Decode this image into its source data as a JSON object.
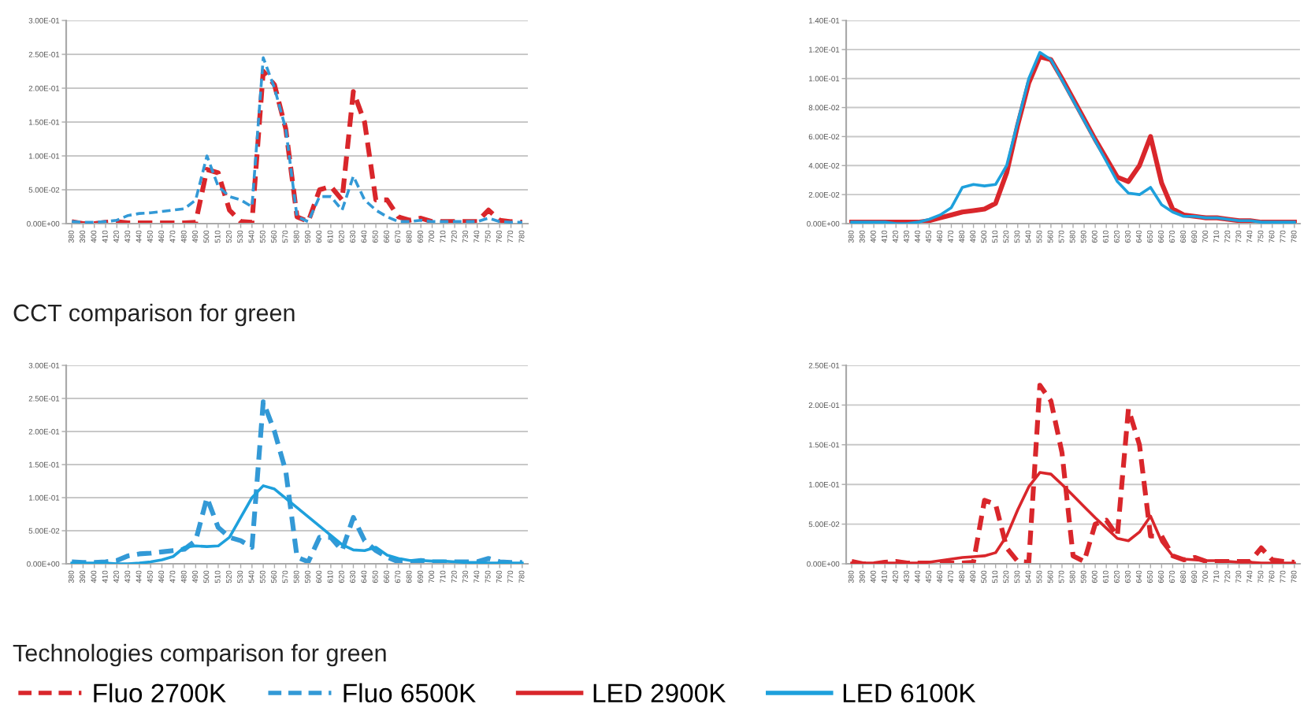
{
  "chart_data": [
    {
      "type": "line",
      "categories": [
        "380",
        "390",
        "400",
        "410",
        "420",
        "430",
        "440",
        "450",
        "460",
        "470",
        "480",
        "490",
        "500",
        "510",
        "520",
        "530",
        "540",
        "550",
        "560",
        "570",
        "580",
        "590",
        "600",
        "610",
        "620",
        "630",
        "640",
        "650",
        "660",
        "670",
        "680",
        "690",
        "700",
        "710",
        "720",
        "730",
        "740",
        "750",
        "760",
        "770",
        "780"
      ],
      "ylim": [
        0,
        0.3
      ],
      "yticks": [
        {
          "value": 0,
          "label": "0.00E+00"
        },
        {
          "value": 0.05,
          "label": "5.00E-02"
        },
        {
          "value": 0.1,
          "label": "1.00E-01"
        },
        {
          "value": 0.15,
          "label": "1.50E-01"
        },
        {
          "value": 0.2,
          "label": "2.00E-01"
        },
        {
          "value": 0.25,
          "label": "2.50E-01"
        },
        {
          "value": 0.3,
          "label": "3.00E-01"
        }
      ],
      "grid": "y",
      "line_style": "dashed",
      "legend": "bottom",
      "annotations": [
        "CCT comparison for green"
      ],
      "series": [
        {
          "name": "Fluo 2700K",
          "color": "#d9262b",
          "values": [
            0.003,
            0,
            0,
            0.002,
            0.003,
            0.001,
            0.001,
            0.001,
            0.001,
            0.001,
            0.001,
            0.002,
            0.08,
            0.075,
            0.02,
            0.003,
            0.002,
            0.225,
            0.205,
            0.14,
            0.01,
            0.003,
            0.05,
            0.055,
            0.035,
            0.195,
            0.15,
            0.035,
            0.035,
            0.01,
            0.005,
            0.008,
            0.003,
            0.003,
            0.003,
            0.003,
            0.003,
            0.02,
            0.005,
            0.003,
            0.002
          ]
        },
        {
          "name": "Fluo 6500K",
          "color": "#3399d6",
          "values": [
            0.003,
            0.002,
            0.002,
            0.003,
            0.005,
            0.012,
            0.015,
            0.016,
            0.018,
            0.02,
            0.022,
            0.035,
            0.1,
            0.055,
            0.04,
            0.035,
            0.025,
            0.245,
            0.2,
            0.14,
            0.01,
            0.003,
            0.04,
            0.04,
            0.02,
            0.07,
            0.035,
            0.02,
            0.01,
            0.003,
            0.003,
            0.005,
            0.003,
            0.003,
            0.003,
            0.003,
            0.003,
            0.008,
            0.003,
            0.002,
            0.002
          ]
        }
      ]
    },
    {
      "type": "line",
      "categories": [
        "380",
        "390",
        "400",
        "410",
        "420",
        "430",
        "440",
        "450",
        "460",
        "470",
        "480",
        "490",
        "500",
        "510",
        "520",
        "530",
        "540",
        "550",
        "560",
        "570",
        "580",
        "590",
        "600",
        "610",
        "620",
        "630",
        "640",
        "650",
        "660",
        "670",
        "680",
        "690",
        "700",
        "710",
        "720",
        "730",
        "740",
        "750",
        "760",
        "770",
        "780"
      ],
      "ylim": [
        0,
        0.14
      ],
      "yticks": [
        {
          "value": 0,
          "label": "0.00E+00"
        },
        {
          "value": 0.02,
          "label": "2.00E-02"
        },
        {
          "value": 0.04,
          "label": "4.00E-02"
        },
        {
          "value": 0.06,
          "label": "6.00E-02"
        },
        {
          "value": 0.08,
          "label": "8.00E-02"
        },
        {
          "value": 0.1,
          "label": "1.00E-01"
        },
        {
          "value": 0.12,
          "label": "1.20E-01"
        },
        {
          "value": 0.14,
          "label": "1.40E-01"
        }
      ],
      "grid": "y",
      "line_style": "solid",
      "legend": "bottom",
      "series": [
        {
          "name": "LED 2900K",
          "color": "#d9262b",
          "values": [
            0.001,
            0.001,
            0.001,
            0.001,
            0.001,
            0.001,
            0.001,
            0.002,
            0.004,
            0.006,
            0.008,
            0.009,
            0.01,
            0.014,
            0.035,
            0.068,
            0.097,
            0.115,
            0.113,
            0.1,
            0.086,
            0.072,
            0.058,
            0.045,
            0.032,
            0.029,
            0.04,
            0.06,
            0.028,
            0.01,
            0.006,
            0.005,
            0.004,
            0.004,
            0.003,
            0.002,
            0.002,
            0.001,
            0.001,
            0.001,
            0.001
          ]
        },
        {
          "name": "LED 6100K",
          "color": "#1ea0dc",
          "values": [
            0.001,
            0.001,
            0.001,
            0.001,
            0,
            0,
            0.001,
            0.003,
            0.006,
            0.011,
            0.025,
            0.027,
            0.026,
            0.027,
            0.04,
            0.07,
            0.1,
            0.118,
            0.113,
            0.099,
            0.085,
            0.071,
            0.057,
            0.043,
            0.029,
            0.021,
            0.02,
            0.025,
            0.013,
            0.008,
            0.005,
            0.005,
            0.004,
            0.004,
            0.003,
            0.002,
            0.002,
            0.001,
            0.001,
            0.001,
            0.001
          ]
        }
      ]
    },
    {
      "type": "line",
      "categories": [
        "380",
        "390",
        "400",
        "410",
        "420",
        "430",
        "440",
        "450",
        "460",
        "470",
        "480",
        "490",
        "500",
        "510",
        "520",
        "530",
        "540",
        "550",
        "560",
        "570",
        "580",
        "590",
        "600",
        "610",
        "620",
        "630",
        "640",
        "650",
        "660",
        "670",
        "680",
        "690",
        "700",
        "710",
        "720",
        "730",
        "740",
        "750",
        "760",
        "770",
        "780"
      ],
      "ylim": [
        0,
        0.3
      ],
      "yticks": [
        {
          "value": 0,
          "label": "0.00E+00"
        },
        {
          "value": 0.05,
          "label": "5.00E-02"
        },
        {
          "value": 0.1,
          "label": "1.00E-01"
        },
        {
          "value": 0.15,
          "label": "1.50E-01"
        },
        {
          "value": 0.2,
          "label": "2.00E-01"
        },
        {
          "value": 0.25,
          "label": "2.50E-01"
        },
        {
          "value": 0.3,
          "label": "3.00E-01"
        }
      ],
      "grid": "y",
      "legend": "bottom",
      "annotations": [
        "Technologies comparison for green"
      ],
      "series": [
        {
          "name": "Fluo 6500K",
          "color": "#3399d6",
          "line_style": "dashed",
          "values": [
            0.003,
            0.002,
            0.002,
            0.003,
            0.005,
            0.012,
            0.015,
            0.016,
            0.018,
            0.02,
            0.022,
            0.035,
            0.1,
            0.055,
            0.04,
            0.035,
            0.025,
            0.245,
            0.2,
            0.14,
            0.01,
            0.003,
            0.04,
            0.04,
            0.02,
            0.07,
            0.035,
            0.02,
            0.01,
            0.003,
            0.003,
            0.005,
            0.003,
            0.003,
            0.003,
            0.003,
            0.003,
            0.008,
            0.003,
            0.002,
            0.002
          ]
        },
        {
          "name": "LED 6100K",
          "color": "#1ea0dc",
          "line_style": "solid",
          "values": [
            0.001,
            0.001,
            0.001,
            0.001,
            0,
            0,
            0.001,
            0.003,
            0.006,
            0.011,
            0.025,
            0.027,
            0.026,
            0.027,
            0.04,
            0.07,
            0.1,
            0.118,
            0.113,
            0.099,
            0.085,
            0.071,
            0.057,
            0.043,
            0.029,
            0.021,
            0.02,
            0.025,
            0.013,
            0.008,
            0.005,
            0.005,
            0.004,
            0.004,
            0.003,
            0.002,
            0.002,
            0.001,
            0.001,
            0.001,
            0.001
          ]
        }
      ]
    },
    {
      "type": "line",
      "categories": [
        "380",
        "390",
        "400",
        "410",
        "420",
        "430",
        "440",
        "450",
        "460",
        "470",
        "480",
        "490",
        "500",
        "510",
        "520",
        "530",
        "540",
        "550",
        "560",
        "570",
        "580",
        "590",
        "600",
        "610",
        "620",
        "630",
        "640",
        "650",
        "660",
        "670",
        "680",
        "690",
        "700",
        "710",
        "720",
        "730",
        "740",
        "750",
        "760",
        "770",
        "780"
      ],
      "ylim": [
        0,
        0.25
      ],
      "yticks": [
        {
          "value": 0,
          "label": "0.00E+00"
        },
        {
          "value": 0.05,
          "label": "5.00E-02"
        },
        {
          "value": 0.1,
          "label": "1.00E-01"
        },
        {
          "value": 0.15,
          "label": "1.50E-01"
        },
        {
          "value": 0.2,
          "label": "2.00E-01"
        },
        {
          "value": 0.25,
          "label": "2.50E-01"
        }
      ],
      "grid": "y",
      "legend": "bottom",
      "series": [
        {
          "name": "Fluo 2700K",
          "color": "#d9262b",
          "line_style": "dashed",
          "values": [
            0.003,
            0,
            0,
            0.002,
            0.003,
            0.001,
            0.001,
            0.001,
            0.001,
            0.001,
            0.001,
            0.002,
            0.08,
            0.075,
            0.02,
            0.003,
            0.002,
            0.225,
            0.205,
            0.14,
            0.01,
            0.003,
            0.05,
            0.055,
            0.035,
            0.195,
            0.15,
            0.035,
            0.035,
            0.01,
            0.005,
            0.008,
            0.003,
            0.003,
            0.003,
            0.003,
            0.003,
            0.02,
            0.005,
            0.003,
            0.002
          ]
        },
        {
          "name": "LED 2900K",
          "color": "#d9262b",
          "line_style": "solid",
          "values": [
            0.001,
            0.001,
            0.001,
            0.001,
            0.001,
            0.001,
            0.001,
            0.002,
            0.004,
            0.006,
            0.008,
            0.009,
            0.01,
            0.014,
            0.035,
            0.068,
            0.097,
            0.115,
            0.113,
            0.1,
            0.086,
            0.072,
            0.058,
            0.045,
            0.032,
            0.029,
            0.04,
            0.06,
            0.028,
            0.01,
            0.006,
            0.005,
            0.004,
            0.004,
            0.003,
            0.002,
            0.002,
            0.001,
            0.001,
            0.001,
            0.001
          ]
        }
      ]
    }
  ]
}
